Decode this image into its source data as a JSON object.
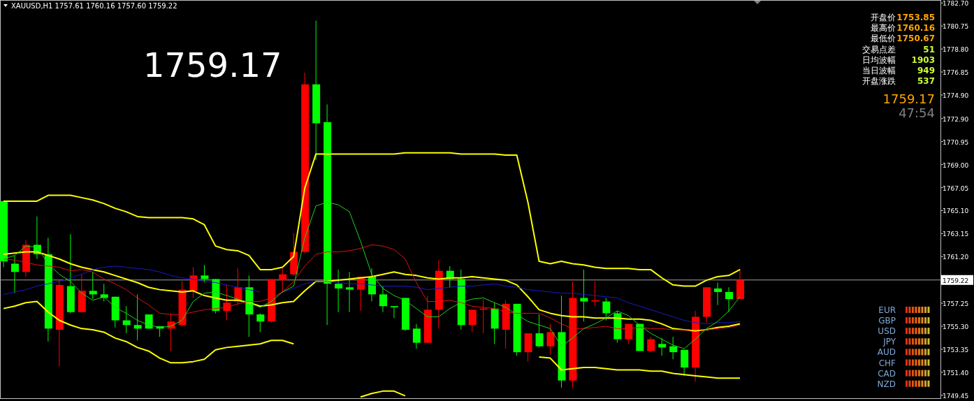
{
  "chart_data": {
    "type": "candlestick",
    "title": "XAUUSD,H1 1757.61 1760.16 1757.60 1759.22",
    "tick_labels": "y",
    "categories": [
      null,
      null,
      null,
      null,
      null,
      null,
      null,
      null,
      null,
      null,
      null,
      null,
      null,
      null,
      null,
      null,
      null,
      null,
      null,
      null,
      null,
      null,
      null,
      null,
      null,
      null,
      null,
      null,
      null,
      null,
      null,
      null,
      null,
      null,
      null,
      null,
      null,
      null,
      null,
      null,
      null,
      null,
      null,
      null,
      null,
      null,
      null,
      null,
      null,
      null,
      null,
      null,
      null,
      null,
      null,
      null,
      null,
      null,
      null,
      null,
      null,
      null,
      null,
      null,
      null,
      null,
      null
    ],
    "ohlc": [
      [
        1765.9,
        1765.9,
        1760.3,
        1760.8
      ],
      [
        1760.6,
        1761.3,
        1758.1,
        1759.9
      ],
      [
        1759.9,
        1762.6,
        1759.5,
        1762.2
      ],
      [
        1762.2,
        1764.6,
        1761.0,
        1761.4
      ],
      [
        1761.4,
        1762.8,
        1754.0,
        1755.1
      ],
      [
        1755.0,
        1759.3,
        1751.9,
        1758.8
      ],
      [
        1758.7,
        1763.1,
        1756.4,
        1756.5
      ],
      [
        1756.5,
        1759.7,
        1756.4,
        1758.3
      ],
      [
        1758.3,
        1759.9,
        1757.6,
        1758.0
      ],
      [
        1758.0,
        1758.9,
        1757.4,
        1757.7
      ],
      [
        1757.8,
        1757.8,
        1755.2,
        1755.8
      ],
      [
        1755.8,
        1757.0,
        1754.7,
        1755.4
      ],
      [
        1755.4,
        1758.0,
        1754.1,
        1755.1
      ],
      [
        1756.3,
        1756.3,
        1755.1,
        1755.1
      ],
      [
        1755.3,
        1755.3,
        1754.4,
        1755.1
      ],
      [
        1755.1,
        1756.4,
        1753.2,
        1755.7
      ],
      [
        1755.4,
        1759.1,
        1755.3,
        1758.4
      ],
      [
        1758.3,
        1760.3,
        1757.7,
        1759.6
      ],
      [
        1759.6,
        1760.5,
        1759.0,
        1759.3
      ],
      [
        1759.3,
        1759.3,
        1756.4,
        1756.6
      ],
      [
        1756.6,
        1758.8,
        1755.8,
        1757.3
      ],
      [
        1757.4,
        1760.2,
        1757.1,
        1758.6
      ],
      [
        1758.6,
        1759.6,
        1754.4,
        1756.3
      ],
      [
        1756.3,
        1756.4,
        1754.8,
        1755.7
      ],
      [
        1755.7,
        1759.3,
        1755.6,
        1759.3
      ],
      [
        1759.2,
        1760.2,
        1758.1,
        1759.7
      ],
      [
        1759.7,
        1763.2,
        1759.6,
        1761.6
      ],
      [
        1761.6,
        1776.8,
        1761.5,
        1775.8
      ],
      [
        1775.8,
        1781.2,
        1769.4,
        1772.5
      ],
      [
        1772.6,
        1774.1,
        1755.4,
        1758.9
      ],
      [
        1758.9,
        1760.1,
        1756.5,
        1758.5
      ],
      [
        1758.6,
        1759.9,
        1756.5,
        1758.4
      ],
      [
        1758.4,
        1759.5,
        1756.6,
        1759.5
      ],
      [
        1759.5,
        1760.2,
        1757.4,
        1758.0
      ],
      [
        1758.0,
        1758.7,
        1756.5,
        1757.0
      ],
      [
        1757.0,
        1757.0,
        1756.0,
        1756.9
      ],
      [
        1757.7,
        1757.7,
        1754.9,
        1755.0
      ],
      [
        1755.1,
        1755.5,
        1753.4,
        1753.9
      ],
      [
        1753.9,
        1757.9,
        1753.9,
        1756.7
      ],
      [
        1756.7,
        1760.9,
        1755.1,
        1760.0
      ],
      [
        1760.0,
        1760.4,
        1758.6,
        1759.3
      ],
      [
        1759.3,
        1760.1,
        1755.0,
        1755.4
      ],
      [
        1755.4,
        1756.7,
        1754.8,
        1756.7
      ],
      [
        1756.7,
        1757.6,
        1754.7,
        1756.8
      ],
      [
        1756.8,
        1757.3,
        1753.8,
        1755.1
      ],
      [
        1755.0,
        1757.5,
        1753.4,
        1757.2
      ],
      [
        1757.2,
        1757.2,
        1752.8,
        1753.1
      ],
      [
        1753.1,
        1754.7,
        1752.3,
        1754.7
      ],
      [
        1754.7,
        1756.3,
        1753.5,
        1753.6
      ],
      [
        1753.6,
        1755.5,
        1752.9,
        1754.8
      ],
      [
        1754.8,
        1757.9,
        1750.1,
        1750.7
      ],
      [
        1750.7,
        1759.1,
        1750.1,
        1757.7
      ],
      [
        1757.7,
        1760.1,
        1755.7,
        1757.4
      ],
      [
        1757.4,
        1759.1,
        1757.0,
        1757.5
      ],
      [
        1757.4,
        1757.7,
        1755.8,
        1756.4
      ],
      [
        1756.4,
        1756.6,
        1753.9,
        1754.2
      ],
      [
        1754.2,
        1755.5,
        1753.8,
        1755.5
      ],
      [
        1755.5,
        1755.5,
        1753.2,
        1753.2
      ],
      [
        1753.2,
        1754.4,
        1753.1,
        1754.2
      ],
      [
        1753.8,
        1754.3,
        1752.8,
        1753.5
      ],
      [
        1753.6,
        1754.4,
        1752.5,
        1753.1
      ],
      [
        1753.3,
        1753.3,
        1751.1,
        1751.8
      ],
      [
        1751.8,
        1756.6,
        1750.6,
        1756.1
      ],
      [
        1756.1,
        1758.6,
        1755.6,
        1758.6
      ],
      [
        1758.5,
        1759.0,
        1757.1,
        1758.2
      ],
      [
        1758.2,
        1758.6,
        1756.5,
        1757.6
      ],
      [
        1757.61,
        1760.16,
        1757.6,
        1759.22
      ]
    ],
    "colors": [
      "#00ff00",
      "#00ff00",
      "#ff0000",
      "#00ff00",
      "#00ff00",
      "#ff0000",
      "#00ff00",
      "#ff0000",
      "#00ff00",
      "#00ff00",
      "#00ff00",
      "#00ff00",
      "#00ff00",
      "#00ff00",
      "#00ff00",
      "#ff0000",
      "#ff0000",
      "#ff0000",
      "#00ff00",
      "#00ff00",
      "#ff0000",
      "#ff0000",
      "#00ff00",
      "#00ff00",
      "#ff0000",
      "#ff0000",
      "#ff0000",
      "#ff0000",
      "#00ff00",
      "#00ff00",
      "#00ff00",
      "#00ff00",
      "#ff0000",
      "#00ff00",
      "#00ff00",
      "#00ff00",
      "#00ff00",
      "#00ff00",
      "#ff0000",
      "#ff0000",
      "#00ff00",
      "#00ff00",
      "#ff0000",
      "#ff0000",
      "#00ff00",
      "#ff0000",
      "#00ff00",
      "#ff0000",
      "#00ff00",
      "#ff0000",
      "#00ff00",
      "#ff0000",
      "#00ff00",
      "#ff0000",
      "#00ff00",
      "#00ff00",
      "#ff0000",
      "#00ff00",
      "#ff0000",
      "#00ff00",
      "#00ff00",
      "#00ff00",
      "#ff0000",
      "#ff0000",
      "#00ff00",
      "#00ff00",
      "#ff0000"
    ],
    "series": [
      {
        "type": "line",
        "color": "#ffff00",
        "values": [
          1765.9,
          1765.9,
          1765.9,
          1765.9,
          1766.4,
          1766.4,
          1766.4,
          1766.2,
          1766.0,
          1765.7,
          1765.3,
          1765.0,
          1764.6,
          1764.5,
          1764.5,
          1764.5,
          1764.5,
          1764.4,
          1763.9,
          1762.1,
          1761.8,
          1761.7,
          1761.3,
          1760.1,
          1760.1,
          1760.3,
          1761.2,
          1767.0,
          1769.9,
          1769.9,
          1769.9,
          1769.9,
          1769.9,
          1769.9,
          1769.9,
          1769.9,
          1770.0,
          1770.0,
          1770.0,
          1770.0,
          1770.0,
          1769.9,
          1769.9,
          1769.9,
          1769.9,
          1769.8,
          1769.8,
          1765.8,
          1760.8,
          1760.6,
          1760.8,
          1760.6,
          1760.5,
          1760.3,
          1760.2,
          1760.2,
          1760.2,
          1760.1,
          1760.1,
          1759.4,
          1758.8,
          1758.7,
          1758.7,
          1759.2,
          1759.5,
          1759.6,
          1760.1
        ]
      },
      {
        "type": "line",
        "color": "#ffff00",
        "values": [
          1761.4,
          1761.5,
          1761.6,
          1761.6,
          1761.3,
          1761.0,
          1760.6,
          1760.3,
          1760.1,
          1759.9,
          1759.6,
          1759.3,
          1759.0,
          1758.6,
          1758.4,
          1758.3,
          1758.2,
          1758.3,
          1757.9,
          1757.7,
          1757.5,
          1757.5,
          1757.3,
          1757.0,
          1757.1,
          1757.3,
          1757.4,
          1758.3,
          1759.1,
          1759.1,
          1759.2,
          1759.3,
          1759.4,
          1759.5,
          1759.7,
          1759.9,
          1759.7,
          1759.6,
          1759.4,
          1759.3,
          1759.4,
          1759.4,
          1759.5,
          1759.4,
          1759.3,
          1759.2,
          1758.8,
          1757.8,
          1756.7,
          1756.4,
          1756.2,
          1756.1,
          1756.1,
          1756.0,
          1756.0,
          1756.0,
          1755.9,
          1755.9,
          1755.8,
          1755.5,
          1755.1,
          1755.0,
          1754.9,
          1755.0,
          1755.2,
          1755.3,
          1755.5
        ]
      },
      {
        "type": "line",
        "color": "#ffff00",
        "values": [
          1756.8,
          1757.0,
          1757.3,
          1757.4,
          1756.5,
          1755.8,
          1755.4,
          1755.1,
          1755.0,
          1754.8,
          1754.3,
          1754.0,
          1753.5,
          1753.2,
          1752.6,
          1752.2,
          1752.2,
          1752.3,
          1752.5,
          1753.3,
          1753.5,
          1753.6,
          1753.7,
          1753.8,
          1754.1,
          1754.1,
          1753.8,
          null,
          null,
          null,
          null,
          null,
          1749.3,
          1749.6,
          1749.8,
          1749.8,
          1749.4,
          null,
          null,
          null,
          null,
          null,
          null,
          null,
          null,
          null,
          null,
          null,
          1752.7,
          1752.6,
          1751.6,
          1751.7,
          1751.8,
          1751.8,
          1751.7,
          1751.6,
          1751.6,
          1751.6,
          1751.5,
          1751.5,
          1751.3,
          1751.2,
          1751.1,
          1751.0,
          1750.9,
          1750.9,
          1750.9
        ]
      },
      {
        "type": "line",
        "color": "#1a1acc",
        "values": [
          1758.0,
          1758.2,
          1758.4,
          1758.7,
          1758.9,
          1759.1,
          1759.4,
          1759.7,
          1760.1,
          1760.3,
          1760.4,
          1760.3,
          1760.2,
          1760.1,
          1759.9,
          1759.6,
          1759.4,
          1759.3,
          1759.1,
          1759.0,
          1758.8,
          1758.6,
          1758.4,
          1758.2,
          null,
          1758.2,
          1758.5,
          1758.9,
          1759.1,
          1759.1,
          1759.0,
          1758.9,
          1758.9,
          1758.8,
          1758.7,
          1758.7,
          1758.7,
          1758.6,
          1758.4,
          1758.5,
          1758.6,
          1758.7,
          1758.7,
          1758.8,
          1758.9,
          1758.7,
          1758.6,
          1758.4,
          1758.3,
          1758.2,
          1758.1,
          1758.1,
          1758.0,
          1757.9,
          1757.8,
          1757.7,
          1757.3,
          1757.0,
          1756.7,
          1756.4,
          1756.1,
          1755.8,
          1755.6,
          1755.5,
          1755.6,
          1755.6,
          1755.7
        ]
      },
      {
        "type": "line",
        "color": "#e01010",
        "values": [
          1761.0,
          1760.9,
          1760.7,
          1760.5,
          1760.4,
          1760.3,
          1760.0,
          1760.1,
          1759.9,
          1759.3,
          1758.9,
          1758.4,
          1757.7,
          1757.1,
          1756.4,
          1756.3,
          1756.3,
          1756.5,
          1756.7,
          1756.8,
          1756.9,
          1757.2,
          1757.4,
          1757.4,
          1757.7,
          1758.2,
          1759.1,
          1760.4,
          1761.4,
          1761.6,
          1761.6,
          1761.7,
          1761.9,
          1762.2,
          1762.1,
          1761.8,
          1761.0,
          1759.0,
          1757.4,
          1757.4,
          1757.5,
          1757.3,
          1757.0,
          1756.9,
          1756.8,
          1756.5,
          1756.4,
          1756.4,
          1756.4,
          1756.0,
          1755.5,
          1755.1,
          1755.1,
          1755.2,
          1755.3,
          1755.1,
          1755.1,
          1755.2,
          1755.1,
          1755.1,
          1755.0,
          1755.0,
          1754.8,
          1755.0,
          1755.1,
          1755.2,
          1755.4
        ]
      },
      {
        "type": "line",
        "color": "#20d020",
        "values": [
          1761.0,
          1761.3,
          1762.1,
          1762.0,
          1760.6,
          1759.7,
          1759.1,
          1758.1,
          1757.5,
          1757.8,
          1756.9,
          1756.4,
          1755.8,
          1755.4,
          1755.2,
          1755.3,
          1755.8,
          1757.4,
          1758.1,
          1758.2,
          1757.9,
          1757.6,
          1757.3,
          1756.9,
          1757.4,
          1758.2,
          1758.7,
          1762.8,
          1765.5,
          1765.8,
          1765.6,
          1765.0,
          1762.5,
          1759.7,
          1758.5,
          1757.9,
          1757.5,
          1756.8,
          1756.1,
          1756.1,
          1756.8,
          1757.3,
          1757.6,
          1757.7,
          1757.3,
          1756.9,
          1756.3,
          1755.7,
          1755.4,
          1755.1,
          1753.6,
          1754.3,
          1755.1,
          1755.5,
          1756.0,
          1756.6,
          1756.2,
          1755.4,
          1754.7,
          1754.2,
          1753.7,
          1753.4,
          1754.2,
          1755.1,
          1755.7,
          1756.6,
          1757.8
        ]
      }
    ],
    "ylim": [
      1749.2,
      1782.95
    ],
    "yticks": [
      {
        "value": 1782.7,
        "label": "1782.70"
      },
      1780.75,
      {
        "value": 1778.8,
        "label": "1778.80"
      },
      1776.85,
      {
        "value": 1774.9,
        "label": "1774.90"
      },
      {
        "value": 1772.9,
        "label": "1772.90"
      },
      1770.95,
      {
        "value": 1769.0,
        "label": "1769.00"
      },
      1767.05,
      {
        "value": 1765.1,
        "label": "1765.10"
      },
      1763.15,
      {
        "value": 1761.2,
        "label": "1761.20"
      },
      1757.25,
      {
        "value": 1755.3,
        "label": "1755.30"
      },
      1753.35,
      {
        "value": 1751.4,
        "label": "1751.40"
      },
      1749.45
    ],
    "ref_lines": [
      {
        "axis": "y",
        "value": 1759.22,
        "label": "1759.22",
        "color": "#a0a0a0"
      }
    ],
    "annotations": [
      "1759.17",
      "开盘价",
      "1753.85",
      "最高价",
      "1760.16",
      "最低价",
      "1750.67",
      "交易点差",
      "51",
      "日均波幅",
      "1903",
      "当日波幅",
      "949",
      "开盘涨跌",
      "537",
      "1759.17",
      "47:54",
      "EUR",
      "GBP",
      "USD",
      "JPY",
      "AUD",
      "CHF",
      "CAD",
      "NZD"
    ]
  }
}
